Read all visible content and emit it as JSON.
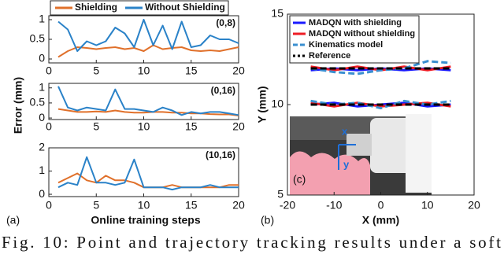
{
  "figure_a": {
    "label": "(a)",
    "ylabel": "Error (mm)",
    "xlabel": "Online training steps"
  },
  "figure_b": {
    "label": "(b)"
  },
  "inset": {
    "label": "(c)",
    "axes": [
      "x",
      "y"
    ]
  },
  "caption": "Fig. 10: Point and trajectory tracking results under a soft",
  "chart_data": [
    {
      "type": "line",
      "annotation": "(0,8)",
      "legend": "top",
      "x": [
        1,
        2,
        3,
        4,
        5,
        6,
        7,
        8,
        9,
        10,
        11,
        12,
        13,
        14,
        15,
        16,
        17,
        18,
        19,
        20
      ],
      "xlim": [
        0,
        20
      ],
      "xticks": [
        0,
        5,
        10,
        15,
        20
      ],
      "ylim": [
        -0.1,
        1.1
      ],
      "yticks": [
        0,
        0.5,
        1
      ],
      "series": [
        {
          "name": "Shielding",
          "color": "#e0702a",
          "values": [
            0.05,
            0.2,
            0.3,
            0.28,
            0.25,
            0.28,
            0.3,
            0.25,
            0.28,
            0.2,
            0.35,
            0.25,
            0.28,
            0.3,
            0.22,
            0.2,
            0.22,
            0.2,
            0.25,
            0.3
          ]
        },
        {
          "name": "Without Shielding",
          "color": "#2a82c8",
          "values": [
            0.95,
            0.75,
            0.2,
            0.45,
            0.35,
            0.45,
            0.8,
            0.65,
            0.3,
            1.0,
            0.35,
            0.85,
            0.25,
            0.95,
            0.3,
            0.35,
            0.6,
            0.5,
            0.5,
            0.4
          ]
        }
      ]
    },
    {
      "type": "line",
      "annotation": "(0,16)",
      "x": [
        1,
        2,
        3,
        4,
        5,
        6,
        7,
        8,
        9,
        10,
        11,
        12,
        13,
        14,
        15,
        16,
        17,
        18,
        19,
        20
      ],
      "xlim": [
        0,
        20
      ],
      "xticks": [
        0,
        5,
        10,
        15,
        20
      ],
      "ylim": [
        -0.05,
        1.15
      ],
      "yticks": [
        0,
        0.5,
        1
      ],
      "series": [
        {
          "color": "#e0702a",
          "values": [
            0.3,
            0.25,
            0.2,
            0.2,
            0.22,
            0.2,
            0.25,
            0.2,
            0.18,
            0.18,
            0.2,
            0.2,
            0.18,
            0.18,
            0.15,
            0.15,
            0.13,
            0.12,
            0.12,
            0.08
          ]
        },
        {
          "color": "#2a82c8",
          "values": [
            1.05,
            0.35,
            0.25,
            0.35,
            0.3,
            0.25,
            0.95,
            0.3,
            0.3,
            0.25,
            0.2,
            0.35,
            0.25,
            0.1,
            0.2,
            0.15,
            0.2,
            0.2,
            0.15,
            0.1
          ]
        }
      ]
    },
    {
      "type": "line",
      "annotation": "(10,16)",
      "x": [
        1,
        2,
        3,
        4,
        5,
        6,
        7,
        8,
        9,
        10,
        11,
        12,
        13,
        14,
        15,
        16,
        17,
        18,
        19,
        20
      ],
      "xlim": [
        0,
        20
      ],
      "xticks": [
        0,
        5,
        10,
        15,
        20
      ],
      "ylim": [
        -0.1,
        2.0
      ],
      "yticks": [
        0,
        1,
        2
      ],
      "series": [
        {
          "color": "#e0702a",
          "values": [
            0.5,
            0.7,
            0.9,
            0.6,
            0.5,
            0.8,
            0.6,
            0.6,
            0.5,
            0.3,
            0.3,
            0.3,
            0.4,
            0.3,
            0.3,
            0.3,
            0.3,
            0.3,
            0.4,
            0.4
          ]
        },
        {
          "color": "#2a82c8",
          "values": [
            0.3,
            0.5,
            0.4,
            1.6,
            0.5,
            0.5,
            0.4,
            0.5,
            1.5,
            0.3,
            0.3,
            0.3,
            0.2,
            0.3,
            0.3,
            0.3,
            0.4,
            0.3,
            0.3,
            0.3
          ]
        }
      ]
    },
    {
      "type": "line",
      "xlabel": "X (mm)",
      "ylabel": "Y (mm)",
      "legend": "upper left",
      "x": [
        -15,
        -10,
        -5,
        0,
        5,
        10,
        15,
        0,
        -15,
        -10,
        -5,
        0,
        5,
        10,
        15
      ],
      "xlim": [
        -20,
        20
      ],
      "xticks": [
        -20,
        -10,
        0,
        10,
        20
      ],
      "ylim": [
        5,
        15
      ],
      "yticks": [
        5,
        10,
        15
      ],
      "series": [
        {
          "name": "MADQN with shielding",
          "color": "#1a1aff",
          "linestyle": "solid",
          "values": [
            11.9,
            12.0,
            11.9,
            12.0,
            11.9,
            12.0,
            11.9,
            null,
            10.0,
            10.1,
            9.9,
            10.0,
            10.1,
            9.9,
            10.0
          ]
        },
        {
          "name": "MADQN without shielding",
          "color": "#ee1c24",
          "linestyle": "solid",
          "values": [
            12.1,
            11.9,
            12.1,
            11.9,
            12.1,
            11.9,
            12.1,
            null,
            10.1,
            9.9,
            10.1,
            9.9,
            10.0,
            10.1,
            9.9
          ]
        },
        {
          "name": "Kinematics model",
          "color": "#3a8fd0",
          "linestyle": "dashed",
          "values": [
            12.0,
            11.8,
            11.7,
            11.9,
            12.0,
            12.4,
            12.3,
            null,
            10.2,
            10.0,
            10.1,
            9.8,
            10.2,
            10.0,
            10.2
          ]
        },
        {
          "name": "Reference",
          "color": "#000000",
          "linestyle": "dashed",
          "values": [
            12,
            12,
            12,
            12,
            12,
            12,
            12,
            null,
            10,
            10,
            10,
            10,
            10,
            10,
            10
          ]
        }
      ]
    }
  ]
}
